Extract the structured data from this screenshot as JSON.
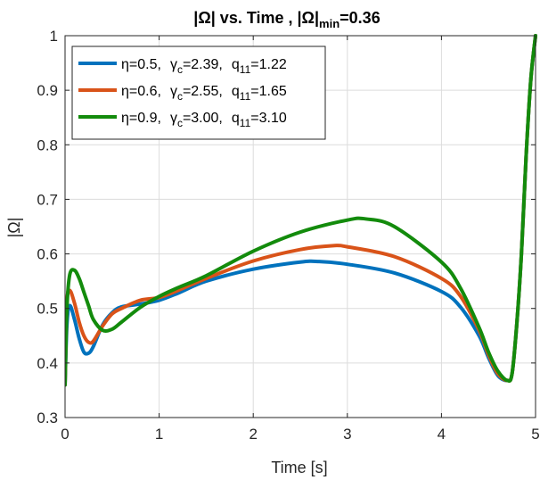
{
  "chart_data": {
    "type": "line",
    "title_parts": {
      "a": "|Ω| vs. Time , |Ω|",
      "sub": "min",
      "b": "=0.36"
    },
    "xlabel": "Time [s]",
    "ylabel": "|Ω|",
    "xlim": [
      0,
      5
    ],
    "ylim": [
      0.3,
      1
    ],
    "xticks": [
      0,
      1,
      2,
      3,
      4,
      5
    ],
    "yticks": [
      0.3,
      0.4,
      0.5,
      0.6,
      0.7,
      0.8,
      0.9,
      1
    ],
    "xtick_labels": [
      "0",
      "1",
      "2",
      "3",
      "4",
      "5"
    ],
    "ytick_labels": [
      "0.3",
      "0.4",
      "0.5",
      "0.6",
      "0.7",
      "0.8",
      "0.9",
      "1"
    ],
    "grid": true,
    "legend_position": "top-left",
    "series": [
      {
        "legend": {
          "eta": "η=0.5,",
          "gamma_main": "γ",
          "gamma_sub": "c",
          "gamma_val": "=2.39,",
          "q_main": "q",
          "q_sub": "11",
          "q_val": "=1.22"
        },
        "color": "#0072BD",
        "x": [
          0,
          0.02,
          0.05,
          0.1,
          0.15,
          0.2,
          0.25,
          0.3,
          0.4,
          0.5,
          0.6,
          0.8,
          1.0,
          1.2,
          1.5,
          2.0,
          2.5,
          2.7,
          3.0,
          3.5,
          4.0,
          4.2,
          4.4,
          4.5,
          4.6,
          4.7,
          4.75,
          4.8,
          4.85,
          4.9,
          4.95,
          5.0
        ],
        "y": [
          0.36,
          0.47,
          0.505,
          0.48,
          0.445,
          0.42,
          0.418,
          0.43,
          0.47,
          0.492,
          0.503,
          0.508,
          0.515,
          0.528,
          0.55,
          0.572,
          0.585,
          0.586,
          0.581,
          0.565,
          0.531,
          0.503,
          0.45,
          0.41,
          0.377,
          0.368,
          0.38,
          0.47,
          0.6,
          0.78,
          0.92,
          1.0
        ]
      },
      {
        "legend": {
          "eta": "η=0.6,",
          "gamma_main": "γ",
          "gamma_sub": "c",
          "gamma_val": "=2.55,",
          "q_main": "q",
          "q_sub": "11",
          "q_val": "=1.65"
        },
        "color": "#D95319",
        "x": [
          0,
          0.02,
          0.05,
          0.1,
          0.15,
          0.2,
          0.25,
          0.3,
          0.4,
          0.5,
          0.6,
          0.8,
          1.0,
          1.2,
          1.5,
          2.0,
          2.5,
          2.85,
          3.0,
          3.5,
          4.0,
          4.2,
          4.4,
          4.5,
          4.6,
          4.7,
          4.75,
          4.8,
          4.85,
          4.9,
          4.95,
          5.0
        ],
        "y": [
          0.36,
          0.51,
          0.533,
          0.51,
          0.475,
          0.45,
          0.438,
          0.44,
          0.468,
          0.49,
          0.5,
          0.515,
          0.52,
          0.533,
          0.555,
          0.587,
          0.608,
          0.615,
          0.613,
          0.595,
          0.555,
          0.523,
          0.46,
          0.415,
          0.38,
          0.368,
          0.38,
          0.47,
          0.6,
          0.78,
          0.92,
          1.0
        ]
      },
      {
        "legend": {
          "eta": "η=0.9,",
          "gamma_main": "γ",
          "gamma_sub": "c",
          "gamma_val": "=3.00,",
          "q_main": "q",
          "q_sub": "11",
          "q_val": "=3.10"
        },
        "color": "#138B0C",
        "x": [
          0,
          0.02,
          0.05,
          0.1,
          0.15,
          0.2,
          0.25,
          0.3,
          0.4,
          0.5,
          0.6,
          0.8,
          1.0,
          1.2,
          1.5,
          2.0,
          2.5,
          3.0,
          3.2,
          3.5,
          4.0,
          4.2,
          4.4,
          4.5,
          4.6,
          4.7,
          4.75,
          4.8,
          4.85,
          4.9,
          4.95,
          5.0
        ],
        "y": [
          0.36,
          0.5,
          0.562,
          0.57,
          0.555,
          0.53,
          0.505,
          0.48,
          0.46,
          0.462,
          0.475,
          0.502,
          0.522,
          0.538,
          0.56,
          0.605,
          0.64,
          0.662,
          0.664,
          0.65,
          0.585,
          0.538,
          0.465,
          0.42,
          0.385,
          0.368,
          0.38,
          0.47,
          0.6,
          0.78,
          0.92,
          1.0
        ]
      }
    ]
  }
}
